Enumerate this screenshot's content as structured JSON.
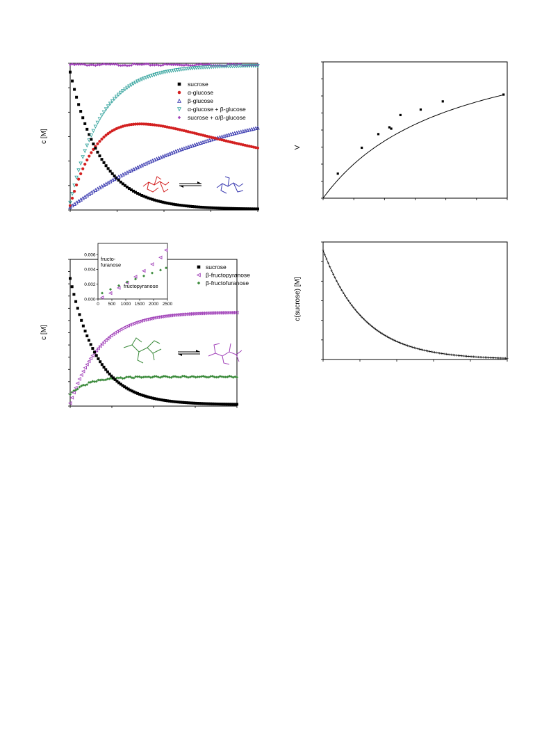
{
  "chart_data": [
    {
      "id": "tl",
      "type": "scatter",
      "ylabel": "c [M]",
      "xlim": [
        0,
        100
      ],
      "ylim": [
        0,
        1
      ],
      "series": [
        {
          "name": "sucrose",
          "color": "#000000",
          "marker": "square"
        },
        {
          "name": "α-glucose",
          "color": "#d32020",
          "marker": "circle"
        },
        {
          "name": "β-glucose",
          "color": "#3a3ab0",
          "marker": "triangle-up"
        },
        {
          "name": "α-glucose + β-glucose",
          "color": "#3aa6a0",
          "marker": "triangle-down"
        },
        {
          "name": "sucrose + α/β-glucose",
          "color": "#a040b8",
          "marker": "diamond"
        }
      ],
      "curves": {
        "sucrose": {
          "start": 0.94,
          "rate": 0.06,
          "end": 0.005
        },
        "alpha_glucose": {
          "peak": 0.6,
          "peak_x": 30,
          "end": 0.44
        },
        "beta_glucose": {
          "start": 0.02,
          "end": 0.56
        },
        "alpha_plus_beta": {
          "end": 0.99
        },
        "sum": {
          "value": 0.99
        }
      },
      "reaction": {
        "from": "α-glucose",
        "to": "β-glucose"
      }
    },
    {
      "id": "tr",
      "type": "scatter",
      "ylabel": "V",
      "xlim": [
        0,
        100
      ],
      "ylim": [
        0,
        100
      ],
      "points": [
        [
          8,
          18
        ],
        [
          21,
          37
        ],
        [
          30,
          47
        ],
        [
          36,
          52
        ],
        [
          37,
          51
        ],
        [
          42,
          61
        ],
        [
          53,
          65
        ],
        [
          65,
          71
        ],
        [
          98,
          76
        ]
      ],
      "fit": {
        "type": "saturation",
        "vmax": 130,
        "km": 70
      }
    },
    {
      "id": "bl",
      "type": "scatter",
      "ylabel": "c [M]",
      "xlim": [
        0,
        100
      ],
      "ylim": [
        0,
        1
      ],
      "series": [
        {
          "name": "sucrose",
          "color": "#000000",
          "marker": "square"
        },
        {
          "name": "β-fructopyranose",
          "color": "#a040b8",
          "marker": "triangle-left"
        },
        {
          "name": "β-fructofuranose",
          "color": "#3a8a3a",
          "marker": "diamond"
        }
      ],
      "curves": {
        "sucrose": {
          "start": 0.87,
          "rate": 0.06,
          "end": 0.01
        },
        "fructopyranose": {
          "start": 0.02,
          "end": 0.64
        },
        "fructofuranose": {
          "start": 0.08,
          "end": 0.2
        }
      },
      "inset": {
        "xticks": [
          "0",
          "500",
          "1000",
          "1500",
          "2000",
          "2500"
        ],
        "yticks": [
          "0.000",
          "0.002",
          "0.004",
          "0.006"
        ],
        "xlim": [
          0,
          2500
        ],
        "ylim": [
          0,
          0.0075
        ],
        "label_upper": "fructo-\nfuranose",
        "label_lower": "fructopyranose",
        "pyranose": [
          [
            150,
            0.0002
          ],
          [
            450,
            0.0008
          ],
          [
            750,
            0.0015
          ],
          [
            1050,
            0.0022
          ],
          [
            1350,
            0.003
          ],
          [
            1650,
            0.0038
          ],
          [
            1950,
            0.0047
          ],
          [
            2250,
            0.0056
          ],
          [
            2450,
            0.0066
          ]
        ],
        "furanose": [
          [
            150,
            0.0008
          ],
          [
            450,
            0.0013
          ],
          [
            750,
            0.0018
          ],
          [
            1050,
            0.0023
          ],
          [
            1350,
            0.0027
          ],
          [
            1650,
            0.0031
          ],
          [
            1950,
            0.0035
          ],
          [
            2250,
            0.0039
          ],
          [
            2450,
            0.0042
          ]
        ]
      },
      "reaction": {
        "from": "β-fructofuranose",
        "to": "β-fructopyranose"
      }
    },
    {
      "id": "br",
      "type": "scatter",
      "ylabel": "c(sucrose) [M]",
      "xlim": [
        0,
        100
      ],
      "ylim": [
        0,
        1
      ],
      "curve": {
        "start": 0.93,
        "rate": 0.045,
        "end": 0.0
      }
    }
  ]
}
